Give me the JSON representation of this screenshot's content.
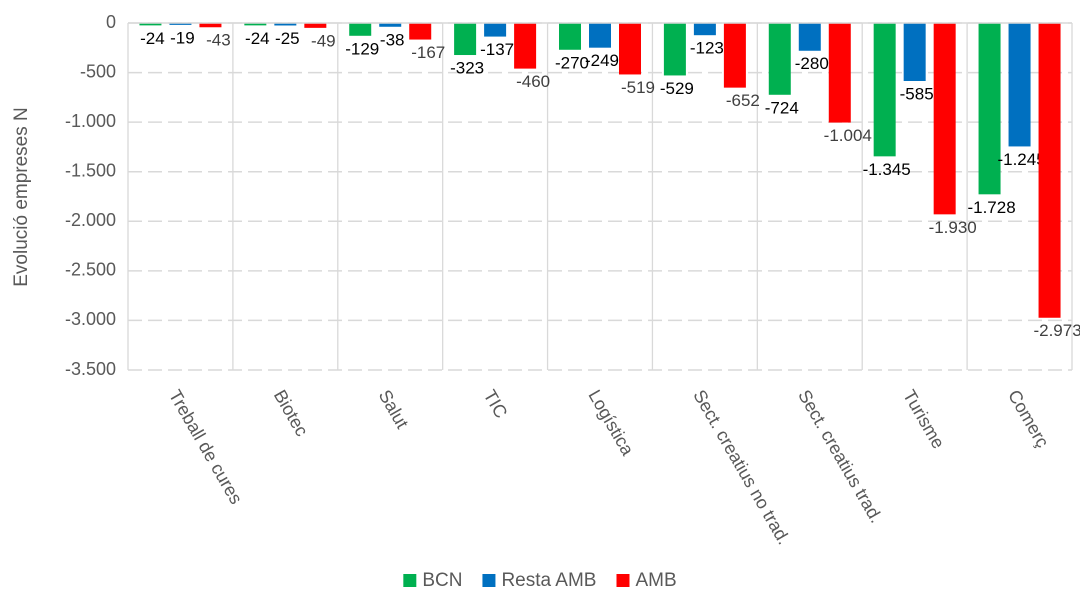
{
  "chart_data": {
    "type": "bar",
    "y_label": "Evolució empreses N",
    "categories": [
      "Treball de cures",
      "Biotec",
      "Salut",
      "TIC",
      "Logística",
      "Sect. creatius no trad.",
      "Sect. creatius trad.",
      "Turisme",
      "Comerç"
    ],
    "series": [
      {
        "name": "BCN",
        "color": "#00b050",
        "values": [
          -24,
          -24,
          -129,
          -323,
          -270,
          -529,
          -724,
          -1345,
          -1728
        ],
        "value_labels": [
          "-24",
          "-24",
          "-129",
          "-323",
          "-270",
          "-529",
          "-724",
          "-1.345",
          "-1.728"
        ]
      },
      {
        "name": "Resta AMB",
        "color": "#0070c0",
        "values": [
          -19,
          -25,
          -38,
          -137,
          -249,
          -123,
          -280,
          -585,
          -1245
        ],
        "value_labels": [
          "-19",
          "-25",
          "-38",
          "-137",
          "-249",
          "-123",
          "-280",
          "-585",
          "-1.245"
        ]
      },
      {
        "name": "AMB",
        "color": "#ff0000",
        "values": [
          -43,
          -49,
          -167,
          -460,
          -519,
          -652,
          -1004,
          -1930,
          -2973
        ],
        "value_labels": [
          "-43",
          "-49",
          "-167",
          "-460",
          "-519",
          "-652",
          "-1.004",
          "-1.930",
          "-2.973"
        ]
      }
    ],
    "ylim": [
      -3500,
      0
    ],
    "yticks": [
      0,
      -500,
      {
        "value": -1000,
        "label": "-1.000"
      },
      {
        "value": -1500,
        "label": "-1.500"
      },
      {
        "value": -2000,
        "label": "-2.000"
      },
      {
        "value": -2500,
        "label": "-2.500"
      },
      {
        "value": -3000,
        "label": "-3.000"
      },
      {
        "value": -3500,
        "label": "-3.500"
      }
    ],
    "grid": true,
    "legend": "bottom"
  }
}
